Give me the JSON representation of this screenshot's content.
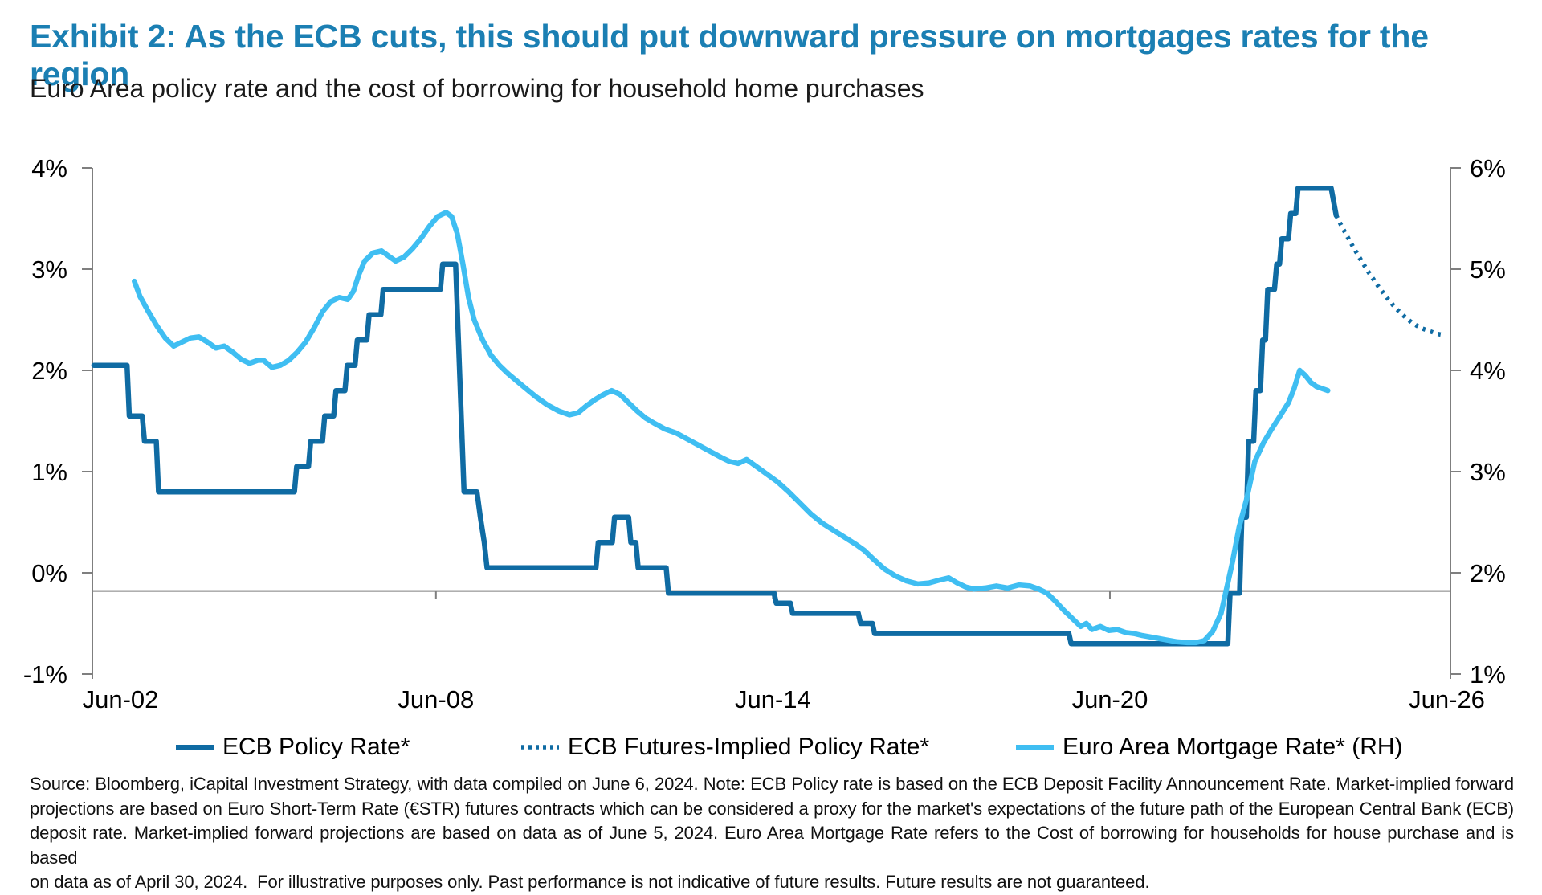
{
  "header": {
    "title": "Exhibit 2: As the ECB cuts, this should put downward pressure on mortgages rates for the region",
    "subtitle": "Euro Area policy rate and the cost of borrowing for household home purchases"
  },
  "colors": {
    "title_blue": "#1B7FB3",
    "policy_line": "#0F6BA3",
    "futures_line": "#0F6BA3",
    "mortgage_line": "#3FBEF2",
    "axis_gray": "#7F7F7F",
    "text_dark": "#111111"
  },
  "chart_data": {
    "type": "line",
    "title": "Exhibit 2: As the ECB cuts, this should put downward pressure on mortgages rates for the region",
    "subtitle": "Euro Area policy rate and the cost of borrowing for household home purchases",
    "grid": "off",
    "legend_position": "bottom",
    "x_axis": {
      "tick_labels": [
        "Jun-02",
        "Jun-08",
        "Jun-14",
        "Jun-20",
        "Jun-26"
      ],
      "tick_years": [
        2002.42,
        2008.42,
        2014.42,
        2020.42,
        2026.42
      ],
      "range_years": [
        2002.33,
        2026.42
      ]
    },
    "left_axis": {
      "tick_labels": [
        "4%",
        "3%",
        "2%",
        "1%",
        "0%",
        "-1%"
      ],
      "tick_values": [
        4,
        3,
        2,
        1,
        0,
        -1
      ],
      "ylim": [
        -1,
        4
      ]
    },
    "right_axis": {
      "tick_labels": [
        "6%",
        "5%",
        "4%",
        "3%",
        "2%",
        "1%"
      ],
      "tick_values": [
        6,
        5,
        4,
        3,
        2,
        1
      ],
      "ylim": [
        1,
        6
      ]
    },
    "baseline_left_value": -0.18,
    "series": [
      {
        "name": "ECB Policy Rate*",
        "axis": "left",
        "style": "solid",
        "color": "#0F6BA3",
        "points": [
          [
            2002.33,
            2.05
          ],
          [
            2002.92,
            2.05
          ],
          [
            2002.96,
            1.55
          ],
          [
            2003.19,
            1.55
          ],
          [
            2003.23,
            1.3
          ],
          [
            2003.44,
            1.3
          ],
          [
            2003.48,
            0.8
          ],
          [
            2005.9,
            0.8
          ],
          [
            2005.94,
            1.05
          ],
          [
            2006.15,
            1.05
          ],
          [
            2006.19,
            1.3
          ],
          [
            2006.4,
            1.3
          ],
          [
            2006.44,
            1.55
          ],
          [
            2006.6,
            1.55
          ],
          [
            2006.64,
            1.8
          ],
          [
            2006.8,
            1.8
          ],
          [
            2006.84,
            2.05
          ],
          [
            2006.98,
            2.05
          ],
          [
            2007.02,
            2.3
          ],
          [
            2007.19,
            2.3
          ],
          [
            2007.23,
            2.55
          ],
          [
            2007.44,
            2.55
          ],
          [
            2007.48,
            2.8
          ],
          [
            2008.5,
            2.8
          ],
          [
            2008.54,
            3.05
          ],
          [
            2008.77,
            3.05
          ],
          [
            2008.82,
            2.3
          ],
          [
            2008.87,
            1.55
          ],
          [
            2008.92,
            0.8
          ],
          [
            2009.15,
            0.8
          ],
          [
            2009.21,
            0.55
          ],
          [
            2009.28,
            0.3
          ],
          [
            2009.33,
            0.05
          ],
          [
            2011.27,
            0.05
          ],
          [
            2011.31,
            0.3
          ],
          [
            2011.56,
            0.3
          ],
          [
            2011.6,
            0.55
          ],
          [
            2011.85,
            0.55
          ],
          [
            2011.89,
            0.3
          ],
          [
            2011.98,
            0.3
          ],
          [
            2012.02,
            0.05
          ],
          [
            2012.52,
            0.05
          ],
          [
            2012.56,
            -0.2
          ],
          [
            2014.44,
            -0.2
          ],
          [
            2014.48,
            -0.3
          ],
          [
            2014.73,
            -0.3
          ],
          [
            2014.77,
            -0.4
          ],
          [
            2015.94,
            -0.4
          ],
          [
            2015.98,
            -0.5
          ],
          [
            2016.19,
            -0.5
          ],
          [
            2016.23,
            -0.6
          ],
          [
            2019.69,
            -0.6
          ],
          [
            2019.73,
            -0.7
          ],
          [
            2022.52,
            -0.7
          ],
          [
            2022.56,
            -0.2
          ],
          [
            2022.73,
            -0.2
          ],
          [
            2022.77,
            0.55
          ],
          [
            2022.85,
            0.55
          ],
          [
            2022.89,
            1.3
          ],
          [
            2022.98,
            1.3
          ],
          [
            2023.02,
            1.8
          ],
          [
            2023.1,
            1.8
          ],
          [
            2023.14,
            2.3
          ],
          [
            2023.19,
            2.3
          ],
          [
            2023.23,
            2.8
          ],
          [
            2023.35,
            2.8
          ],
          [
            2023.39,
            3.05
          ],
          [
            2023.44,
            3.05
          ],
          [
            2023.48,
            3.3
          ],
          [
            2023.6,
            3.3
          ],
          [
            2023.64,
            3.55
          ],
          [
            2023.73,
            3.55
          ],
          [
            2023.77,
            3.8
          ],
          [
            2024.36,
            3.8
          ],
          [
            2024.45,
            3.53
          ]
        ]
      },
      {
        "name": "ECB Futures-Implied Policy Rate*",
        "axis": "left",
        "style": "dotted",
        "color": "#0F6BA3",
        "points": [
          [
            2024.45,
            3.53
          ],
          [
            2024.55,
            3.42
          ],
          [
            2024.65,
            3.32
          ],
          [
            2024.75,
            3.22
          ],
          [
            2024.9,
            3.08
          ],
          [
            2025.05,
            2.95
          ],
          [
            2025.2,
            2.83
          ],
          [
            2025.35,
            2.72
          ],
          [
            2025.5,
            2.62
          ],
          [
            2025.65,
            2.54
          ],
          [
            2025.8,
            2.47
          ],
          [
            2025.95,
            2.42
          ],
          [
            2026.1,
            2.39
          ],
          [
            2026.25,
            2.36
          ],
          [
            2026.35,
            2.35
          ]
        ]
      },
      {
        "name": "Euro Area Mortgage Rate* (RH)",
        "axis": "right",
        "style": "solid",
        "color": "#3FBEF2",
        "points": [
          [
            2003.05,
            4.88
          ],
          [
            2003.15,
            4.73
          ],
          [
            2003.3,
            4.58
          ],
          [
            2003.45,
            4.44
          ],
          [
            2003.6,
            4.32
          ],
          [
            2003.75,
            4.24
          ],
          [
            2003.9,
            4.28
          ],
          [
            2004.05,
            4.32
          ],
          [
            2004.2,
            4.33
          ],
          [
            2004.35,
            4.28
          ],
          [
            2004.5,
            4.22
          ],
          [
            2004.65,
            4.24
          ],
          [
            2004.8,
            4.18
          ],
          [
            2004.95,
            4.11
          ],
          [
            2005.1,
            4.07
          ],
          [
            2005.25,
            4.1
          ],
          [
            2005.35,
            4.1
          ],
          [
            2005.5,
            4.03
          ],
          [
            2005.65,
            4.05
          ],
          [
            2005.8,
            4.1
          ],
          [
            2005.95,
            4.18
          ],
          [
            2006.1,
            4.28
          ],
          [
            2006.25,
            4.42
          ],
          [
            2006.4,
            4.58
          ],
          [
            2006.55,
            4.68
          ],
          [
            2006.7,
            4.72
          ],
          [
            2006.85,
            4.7
          ],
          [
            2006.95,
            4.78
          ],
          [
            2007.05,
            4.95
          ],
          [
            2007.15,
            5.08
          ],
          [
            2007.3,
            5.16
          ],
          [
            2007.45,
            5.18
          ],
          [
            2007.55,
            5.14
          ],
          [
            2007.7,
            5.08
          ],
          [
            2007.85,
            5.12
          ],
          [
            2008,
            5.2
          ],
          [
            2008.15,
            5.3
          ],
          [
            2008.3,
            5.42
          ],
          [
            2008.45,
            5.52
          ],
          [
            2008.6,
            5.56
          ],
          [
            2008.7,
            5.52
          ],
          [
            2008.8,
            5.35
          ],
          [
            2008.9,
            5.05
          ],
          [
            2009,
            4.72
          ],
          [
            2009.1,
            4.5
          ],
          [
            2009.25,
            4.3
          ],
          [
            2009.4,
            4.15
          ],
          [
            2009.55,
            4.05
          ],
          [
            2009.7,
            3.97
          ],
          [
            2009.85,
            3.9
          ],
          [
            2010,
            3.83
          ],
          [
            2010.2,
            3.74
          ],
          [
            2010.4,
            3.66
          ],
          [
            2010.6,
            3.6
          ],
          [
            2010.8,
            3.56
          ],
          [
            2010.95,
            3.58
          ],
          [
            2011.1,
            3.65
          ],
          [
            2011.25,
            3.71
          ],
          [
            2011.4,
            3.76
          ],
          [
            2011.55,
            3.8
          ],
          [
            2011.7,
            3.76
          ],
          [
            2011.85,
            3.68
          ],
          [
            2012,
            3.6
          ],
          [
            2012.15,
            3.53
          ],
          [
            2012.3,
            3.48
          ],
          [
            2012.5,
            3.42
          ],
          [
            2012.7,
            3.38
          ],
          [
            2012.9,
            3.32
          ],
          [
            2013.1,
            3.26
          ],
          [
            2013.3,
            3.2
          ],
          [
            2013.5,
            3.14
          ],
          [
            2013.65,
            3.1
          ],
          [
            2013.8,
            3.08
          ],
          [
            2013.95,
            3.12
          ],
          [
            2014.1,
            3.06
          ],
          [
            2014.3,
            2.98
          ],
          [
            2014.5,
            2.9
          ],
          [
            2014.7,
            2.8
          ],
          [
            2014.9,
            2.69
          ],
          [
            2015.1,
            2.58
          ],
          [
            2015.3,
            2.49
          ],
          [
            2015.5,
            2.42
          ],
          [
            2015.7,
            2.35
          ],
          [
            2015.9,
            2.28
          ],
          [
            2016.05,
            2.22
          ],
          [
            2016.2,
            2.14
          ],
          [
            2016.4,
            2.04
          ],
          [
            2016.6,
            1.97
          ],
          [
            2016.8,
            1.92
          ],
          [
            2017,
            1.89
          ],
          [
            2017.2,
            1.9
          ],
          [
            2017.4,
            1.93
          ],
          [
            2017.55,
            1.95
          ],
          [
            2017.7,
            1.9
          ],
          [
            2017.85,
            1.86
          ],
          [
            2018,
            1.84
          ],
          [
            2018.2,
            1.85
          ],
          [
            2018.4,
            1.87
          ],
          [
            2018.6,
            1.85
          ],
          [
            2018.8,
            1.88
          ],
          [
            2019,
            1.87
          ],
          [
            2019.15,
            1.84
          ],
          [
            2019.3,
            1.8
          ],
          [
            2019.45,
            1.72
          ],
          [
            2019.6,
            1.63
          ],
          [
            2019.75,
            1.55
          ],
          [
            2019.9,
            1.47
          ],
          [
            2020,
            1.5
          ],
          [
            2020.1,
            1.44
          ],
          [
            2020.25,
            1.47
          ],
          [
            2020.4,
            1.43
          ],
          [
            2020.55,
            1.44
          ],
          [
            2020.7,
            1.41
          ],
          [
            2020.85,
            1.4
          ],
          [
            2021,
            1.38
          ],
          [
            2021.2,
            1.36
          ],
          [
            2021.4,
            1.34
          ],
          [
            2021.6,
            1.32
          ],
          [
            2021.8,
            1.31
          ],
          [
            2021.95,
            1.31
          ],
          [
            2022.1,
            1.33
          ],
          [
            2022.25,
            1.42
          ],
          [
            2022.4,
            1.6
          ],
          [
            2022.5,
            1.85
          ],
          [
            2022.6,
            2.1
          ],
          [
            2022.72,
            2.45
          ],
          [
            2022.85,
            2.72
          ],
          [
            2023,
            3.1
          ],
          [
            2023.15,
            3.28
          ],
          [
            2023.3,
            3.42
          ],
          [
            2023.45,
            3.55
          ],
          [
            2023.6,
            3.68
          ],
          [
            2023.7,
            3.82
          ],
          [
            2023.8,
            4
          ],
          [
            2023.9,
            3.95
          ],
          [
            2024,
            3.88
          ],
          [
            2024.1,
            3.84
          ],
          [
            2024.2,
            3.82
          ],
          [
            2024.3,
            3.8
          ]
        ]
      }
    ]
  },
  "legend": {
    "items": [
      {
        "label": "ECB Policy Rate*",
        "style": "solid",
        "color": "#0F6BA3"
      },
      {
        "label": "ECB Futures-Implied Policy Rate*",
        "style": "dotted",
        "color": "#0F6BA3"
      },
      {
        "label": "Euro Area Mortgage Rate* (RH)",
        "style": "solid",
        "color": "#3FBEF2"
      }
    ]
  },
  "footer": {
    "lines": [
      "Source: Bloomberg, iCapital Investment Strategy, with data compiled on June 6, 2024. Note: ECB Policy rate is based on the ECB Deposit Facility Announcement Rate. Market-implied forward",
      "projections are based on Euro Short-Term Rate (€STR) futures contracts which can be considered a proxy for the market's expectations of the future path of the European Central Bank (ECB)",
      "deposit rate. Market-implied forward projections are based on data as of June 5, 2024. Euro Area Mortgage Rate refers to the Cost of borrowing for households for house purchase and is based",
      "on data as of April 30, 2024.  For illustrative purposes only. Past performance is not indicative of future results. Future results are not guaranteed."
    ]
  }
}
